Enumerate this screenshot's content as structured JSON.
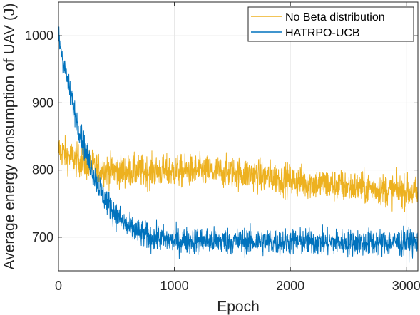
{
  "chart_data": {
    "type": "line",
    "xlabel": "Epoch",
    "ylabel": "Average energy consumption of UAV (J)",
    "xlim": [
      0,
      3100
    ],
    "ylim": [
      650,
      1050
    ],
    "xticks": [
      0,
      1000,
      2000,
      3000
    ],
    "yticks": [
      700,
      800,
      900,
      1000
    ],
    "xtick_labels": [
      "0",
      "1000",
      "2000",
      "3000"
    ],
    "ytick_labels": [
      "700",
      "800",
      "900",
      "1000"
    ],
    "grid": true,
    "legend_position": "top-right",
    "series": [
      {
        "name": "No Beta distribution",
        "color": "#EDB120",
        "x": [
          0,
          100,
          200,
          300,
          400,
          500,
          600,
          800,
          1000,
          1200,
          1400,
          1600,
          1800,
          2000,
          2200,
          2400,
          2600,
          2800,
          3000,
          3100
        ],
        "values": [
          830,
          820,
          812,
          805,
          800,
          799,
          798,
          798,
          798,
          799,
          797,
          795,
          790,
          785,
          780,
          777,
          774,
          771,
          768,
          765
        ],
        "noise": 12
      },
      {
        "name": "HATRPO-UCB",
        "color": "#0072BD",
        "x": [
          0,
          50,
          100,
          150,
          200,
          250,
          300,
          400,
          500,
          600,
          700,
          800,
          900,
          1000,
          1200,
          1500,
          2000,
          2500,
          3000,
          3100
        ],
        "values": [
          1000,
          955,
          915,
          880,
          848,
          820,
          795,
          758,
          732,
          715,
          706,
          700,
          697,
          695,
          695,
          694,
          693,
          692,
          692,
          692
        ],
        "noise": 10
      }
    ]
  }
}
